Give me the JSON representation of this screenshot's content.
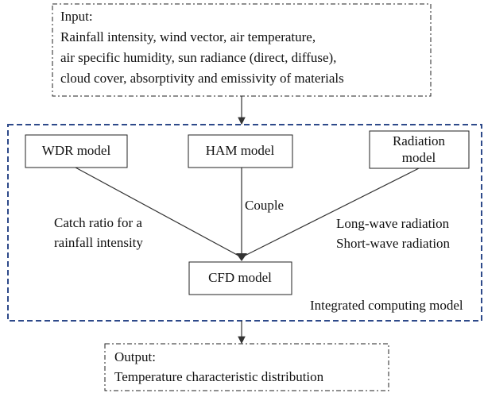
{
  "input": {
    "title": "Input:",
    "lines": [
      "Rainfall intensity, wind vector, air temperature,",
      "air specific humidity, sun radiance (direct, diffuse),",
      "cloud cover, absorptivity and emissivity of materials"
    ]
  },
  "container": {
    "label": "Integrated computing model"
  },
  "nodes": [
    {
      "label": "WDR model"
    },
    {
      "label": "HAM model"
    },
    {
      "label": [
        "Radiation",
        "model"
      ]
    },
    {
      "label": "CFD model"
    }
  ],
  "edges": [
    {
      "label": [
        "Catch ratio for a",
        "rainfall intensity"
      ]
    },
    {
      "label": [
        "Couple"
      ]
    },
    {
      "label": [
        "Long-wave radiation",
        "Short-wave radiation"
      ]
    }
  ],
  "output": {
    "title": "Output:",
    "lines": [
      "Temperature characteristic distribution"
    ]
  }
}
